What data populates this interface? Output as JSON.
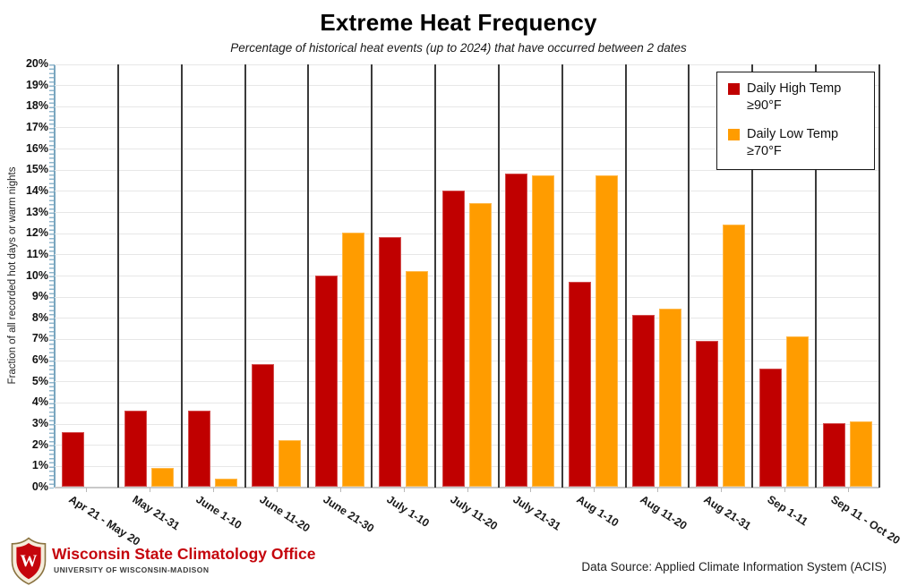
{
  "title": "Extreme Heat Frequency",
  "subtitle": "Percentage of historical heat events (up to 2024) that have occurred between 2 dates",
  "chart_data": {
    "type": "bar",
    "categories": [
      "Apr 21 - May 20",
      "May 21-31",
      "June 1-10",
      "June 11-20",
      "June 21-30",
      "July 1-10",
      "July 11-20",
      "July 21-31",
      "Aug 1-10",
      "Aug 11-20",
      "Aug 21-31",
      "Sep 1-11",
      "Sep 11 - Oct 20"
    ],
    "series": [
      {
        "name": "Daily High Temp ≥90°F",
        "color": "#C00000",
        "values": [
          2.6,
          3.6,
          3.6,
          5.8,
          10.0,
          11.8,
          14.0,
          14.8,
          9.7,
          8.1,
          6.9,
          5.6,
          3.0
        ]
      },
      {
        "name": "Daily Low Temp ≥70°F",
        "color": "#FF9C00",
        "values": [
          0,
          0.9,
          0.4,
          2.2,
          12.0,
          10.2,
          13.4,
          14.7,
          14.7,
          8.4,
          12.4,
          7.1,
          3.1
        ]
      }
    ],
    "xlabel": "",
    "ylabel": "Fraction of all recorded hot days or warm nights",
    "ylim": [
      0,
      20
    ],
    "ytick_step": 1,
    "ytick_labels": [
      "0%",
      "1%",
      "2%",
      "3%",
      "4%",
      "5%",
      "6%",
      "7%",
      "8%",
      "9%",
      "10%",
      "11%",
      "12%",
      "13%",
      "14%",
      "15%",
      "16%",
      "17%",
      "18%",
      "19%",
      "20%"
    ],
    "grid": "horizontal",
    "legend_position": "top-right"
  },
  "legend": {
    "items": [
      {
        "line1": "Daily High Temp",
        "line2": "≥90°F",
        "color": "#C00000"
      },
      {
        "line1": "Daily Low Temp",
        "line2": "≥70°F",
        "color": "#FF9C00"
      }
    ]
  },
  "footer": {
    "org": "Wisconsin State Climatology Office",
    "org_sub": "UNIVERSITY OF WISCONSIN-MADISON",
    "logo": "uw-madison-crest",
    "data_source": "Data Source: Applied Climate Information System (ACIS)"
  }
}
